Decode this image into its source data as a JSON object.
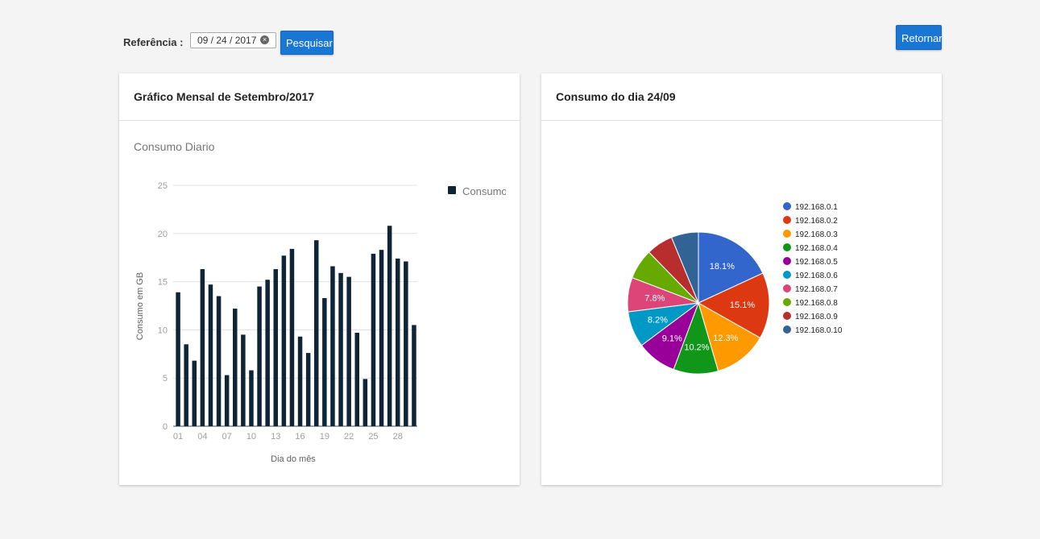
{
  "toolbar": {
    "reference_label": "Referência :",
    "date_value": "09 / 24 / 2017",
    "search_label": "Pesquisar",
    "return_label": "Retornar"
  },
  "monthly_card": {
    "title": "Gráfico Mensal de Setembro/2017"
  },
  "daily_card": {
    "title": "Consumo do dia 24/09"
  },
  "chart_data": [
    {
      "type": "bar",
      "title": "Consumo Diario",
      "xlabel": "Dia do mês",
      "ylabel": "Consumo em GB",
      "ylim": [
        0,
        25
      ],
      "yticks": [
        0,
        5,
        10,
        15,
        20,
        25
      ],
      "xtick_labels": [
        "01",
        "04",
        "07",
        "10",
        "13",
        "16",
        "19",
        "22",
        "25",
        "28"
      ],
      "grid": true,
      "legend_position": "right",
      "color": "#0f2537",
      "categories": [
        "01",
        "02",
        "03",
        "04",
        "05",
        "06",
        "07",
        "08",
        "09",
        "10",
        "11",
        "12",
        "13",
        "14",
        "15",
        "16",
        "17",
        "18",
        "19",
        "20",
        "21",
        "22",
        "23",
        "24",
        "25",
        "26",
        "27",
        "28",
        "29",
        "30"
      ],
      "series": [
        {
          "name": "Consumo",
          "values": [
            13.9,
            8.5,
            6.8,
            16.3,
            14.7,
            13.5,
            5.3,
            12.2,
            9.5,
            5.8,
            14.5,
            15.2,
            16.3,
            17.7,
            18.4,
            9.3,
            7.6,
            19.3,
            13.3,
            16.6,
            15.9,
            15.5,
            9.7,
            4.9,
            17.9,
            18.3,
            20.8,
            17.4,
            17.1,
            10.5
          ]
        }
      ]
    },
    {
      "type": "pie",
      "legend_position": "right",
      "slices": [
        {
          "label": "192.168.0.1",
          "value": 18.1,
          "display": "18.1%",
          "color": "#3366cc"
        },
        {
          "label": "192.168.0.2",
          "value": 15.1,
          "display": "15.1%",
          "color": "#dc3912"
        },
        {
          "label": "192.168.0.3",
          "value": 12.3,
          "display": "12.3%",
          "color": "#ff9900"
        },
        {
          "label": "192.168.0.4",
          "value": 10.2,
          "display": "10.2%",
          "color": "#109618"
        },
        {
          "label": "192.168.0.5",
          "value": 9.1,
          "display": "9.1%",
          "color": "#990099"
        },
        {
          "label": "192.168.0.6",
          "value": 8.2,
          "display": "8.2%",
          "color": "#0099c6"
        },
        {
          "label": "192.168.0.7",
          "value": 7.8,
          "display": "7.8%",
          "color": "#dd4477"
        },
        {
          "label": "192.168.0.8",
          "value": 6.9,
          "display": "",
          "color": "#66aa00"
        },
        {
          "label": "192.168.0.9",
          "value": 6.1,
          "display": "",
          "color": "#b82e2e"
        },
        {
          "label": "192.168.0.10",
          "value": 6.2,
          "display": "",
          "color": "#316395"
        }
      ]
    }
  ]
}
